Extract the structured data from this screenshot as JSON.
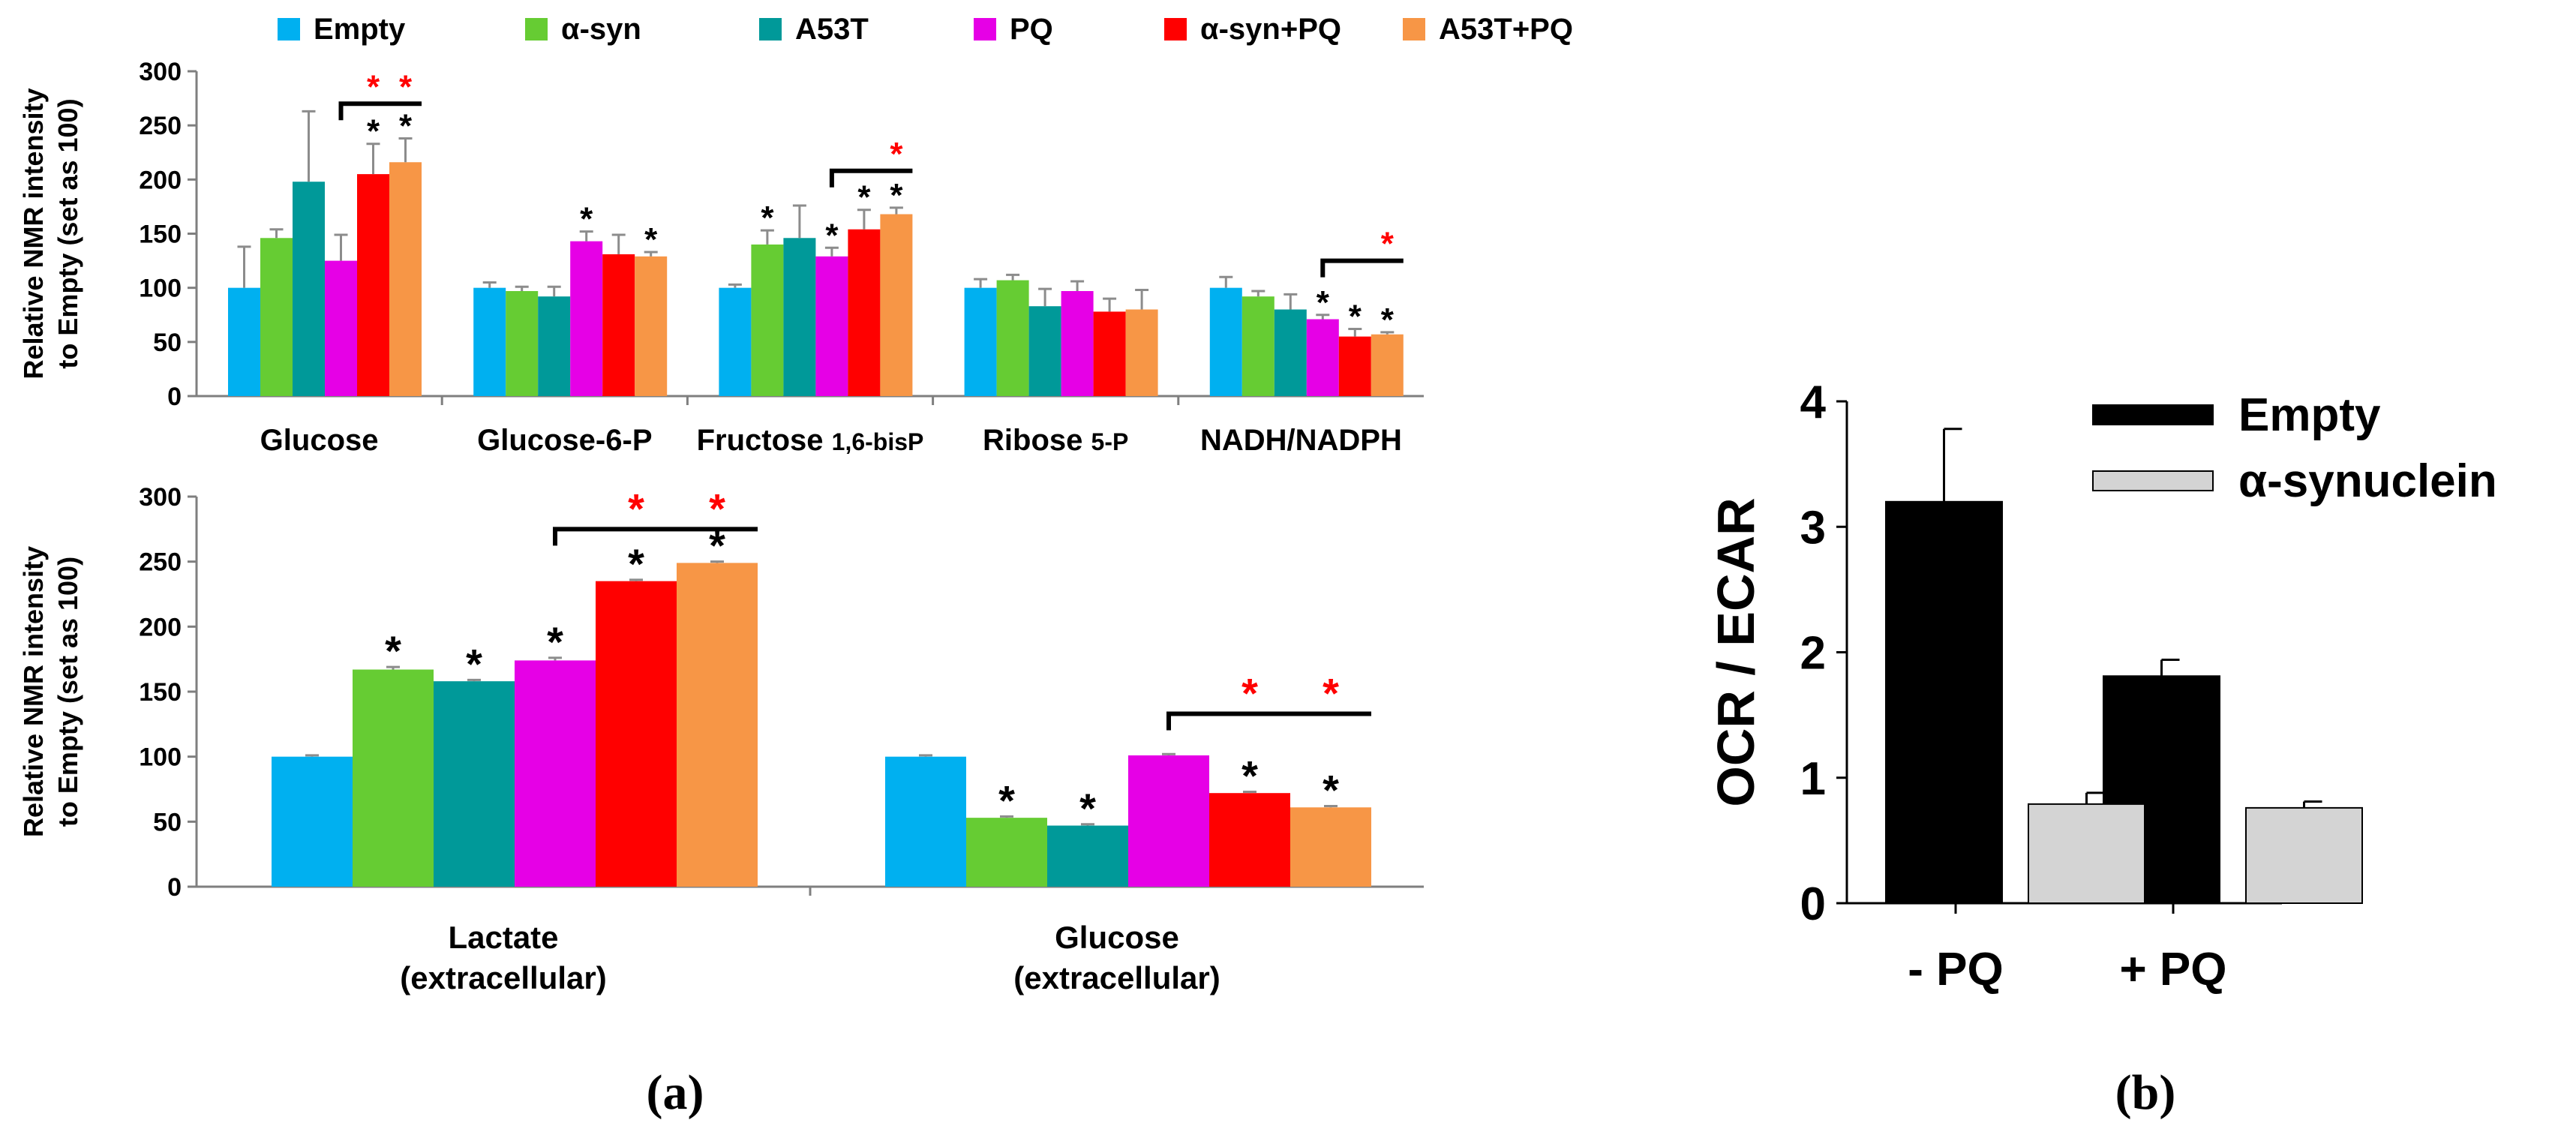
{
  "colors": {
    "Empty": "#00B0F0",
    "α-syn": "#66CC33",
    "A53T": "#009999",
    "PQ": "#E600E6",
    "α-syn+PQ": "#FF0000",
    "A53T+PQ": "#F79646",
    "b_empty": "#000000",
    "b_asyn": "#D4D4D4",
    "sig_black": "#000000",
    "sig_red": "#FF0000"
  },
  "legend_a": [
    "Empty",
    "α-syn",
    "A53T",
    "PQ",
    "α-syn+PQ",
    "A53T+PQ"
  ],
  "panel_labels": {
    "a": "(a)",
    "b": "(b)"
  },
  "chart_data": [
    {
      "id": "a-top",
      "type": "bar",
      "ylabel_lines": [
        "Relative NMR intensity",
        "to Empty (set  as 100)"
      ],
      "ylim": [
        0,
        300
      ],
      "yticks": [
        0,
        50,
        100,
        150,
        200,
        250,
        300
      ],
      "categories": [
        {
          "parts": [
            {
              "text": "Glucose"
            }
          ]
        },
        {
          "parts": [
            {
              "text": "Glucose-6-P"
            }
          ]
        },
        {
          "parts": [
            {
              "text": "Fructose "
            },
            {
              "text": "1,6-bisP",
              "small": true
            }
          ]
        },
        {
          "parts": [
            {
              "text": "Ribose "
            },
            {
              "text": "5-P",
              "small": true
            }
          ]
        },
        {
          "parts": [
            {
              "text": "NADH/NADPH"
            }
          ]
        }
      ],
      "series": [
        {
          "name": "Empty",
          "values": [
            100,
            100,
            100,
            100,
            100
          ],
          "errors": [
            38,
            5,
            3,
            8,
            10
          ]
        },
        {
          "name": "α-syn",
          "values": [
            146,
            97,
            140,
            107,
            92
          ],
          "errors": [
            8,
            4,
            13,
            5,
            5
          ]
        },
        {
          "name": "A53T",
          "values": [
            198,
            92,
            146,
            83,
            80
          ],
          "errors": [
            65,
            9,
            30,
            16,
            14
          ]
        },
        {
          "name": "PQ",
          "values": [
            125,
            143,
            129,
            97,
            71
          ],
          "errors": [
            24,
            9,
            8,
            9,
            4
          ]
        },
        {
          "name": "α-syn+PQ",
          "values": [
            205,
            131,
            154,
            78,
            55
          ],
          "errors": [
            28,
            18,
            18,
            12,
            7
          ]
        },
        {
          "name": "A53T+PQ",
          "values": [
            216,
            129,
            168,
            80,
            57
          ],
          "errors": [
            22,
            4,
            6,
            18,
            2
          ]
        }
      ],
      "stars": [
        {
          "cat": 0,
          "series": 4,
          "text": "*"
        },
        {
          "cat": 0,
          "series": 5,
          "text": "*"
        },
        {
          "cat": 1,
          "series": 3,
          "text": "*"
        },
        {
          "cat": 1,
          "series": 5,
          "text": "*"
        },
        {
          "cat": 2,
          "series": 1,
          "text": "*"
        },
        {
          "cat": 2,
          "series": 3,
          "text": "*"
        },
        {
          "cat": 2,
          "series": 4,
          "text": "*"
        },
        {
          "cat": 2,
          "series": 5,
          "text": "*"
        },
        {
          "cat": 4,
          "series": 3,
          "text": "*"
        },
        {
          "cat": 4,
          "series": 4,
          "text": "*"
        },
        {
          "cat": 4,
          "series": 5,
          "text": "*"
        }
      ],
      "brackets": [
        {
          "cat": 0,
          "from": 3,
          "to": 5,
          "y": 270,
          "stars": [
            "*",
            "*"
          ],
          "star_series": [
            4,
            5
          ]
        },
        {
          "cat": 2,
          "from": 3,
          "to": 5,
          "y": 208,
          "stars": [
            "*"
          ],
          "star_series": [
            5
          ]
        },
        {
          "cat": 4,
          "from": 3,
          "to": 5,
          "y": 125,
          "stars": [
            "*"
          ],
          "star_series": [
            5
          ]
        }
      ]
    },
    {
      "id": "a-bottom",
      "type": "bar",
      "ylabel_lines": [
        "Relative NMR intensity",
        "to Empty (set  as 100)"
      ],
      "ylim": [
        0,
        300
      ],
      "yticks": [
        0,
        50,
        100,
        150,
        200,
        250,
        300
      ],
      "categories": [
        {
          "lines": [
            "Lactate",
            "(extracellular)"
          ]
        },
        {
          "lines": [
            "Glucose",
            "(extracellular)"
          ]
        }
      ],
      "series": [
        {
          "name": "Empty",
          "values": [
            100,
            100
          ],
          "errors": [
            1,
            1
          ]
        },
        {
          "name": "α-syn",
          "values": [
            167,
            53
          ],
          "errors": [
            2,
            1
          ]
        },
        {
          "name": "A53T",
          "values": [
            158,
            47
          ],
          "errors": [
            1,
            1
          ]
        },
        {
          "name": "PQ",
          "values": [
            174,
            101
          ],
          "errors": [
            2,
            1
          ]
        },
        {
          "name": "α-syn+PQ",
          "values": [
            235,
            72
          ],
          "errors": [
            1,
            1
          ]
        },
        {
          "name": "A53T+PQ",
          "values": [
            249,
            61
          ],
          "errors": [
            1,
            1
          ]
        }
      ],
      "stars": [
        {
          "cat": 0,
          "series": 1,
          "text": "*"
        },
        {
          "cat": 0,
          "series": 2,
          "text": "*"
        },
        {
          "cat": 0,
          "series": 3,
          "text": "*"
        },
        {
          "cat": 0,
          "series": 4,
          "text": "*"
        },
        {
          "cat": 0,
          "series": 5,
          "text": "*"
        },
        {
          "cat": 1,
          "series": 1,
          "text": "*"
        },
        {
          "cat": 1,
          "series": 2,
          "text": "*"
        },
        {
          "cat": 1,
          "series": 4,
          "text": "*"
        },
        {
          "cat": 1,
          "series": 5,
          "text": "*"
        }
      ],
      "brackets": [
        {
          "cat": 0,
          "from": 3,
          "to": 5,
          "y": 275,
          "stars": [
            "*",
            "*"
          ],
          "star_series": [
            4,
            5
          ]
        },
        {
          "cat": 1,
          "from": 3,
          "to": 5,
          "y": 133,
          "stars": [
            "*",
            "*"
          ],
          "star_series": [
            4,
            5
          ]
        }
      ]
    },
    {
      "id": "b",
      "type": "bar",
      "ylabel": "OCR / ECAR",
      "ylim": [
        0,
        4
      ],
      "yticks": [
        0,
        1,
        2,
        3,
        4
      ],
      "categories": [
        "- PQ",
        "+ PQ"
      ],
      "series": [
        {
          "name": "Empty",
          "values": [
            3.2,
            1.81
          ],
          "errors": [
            0.58,
            0.13
          ]
        },
        {
          "name": "α-synuclein",
          "values": [
            0.79,
            0.76
          ],
          "errors": [
            0.09,
            0.05
          ]
        }
      ]
    }
  ]
}
